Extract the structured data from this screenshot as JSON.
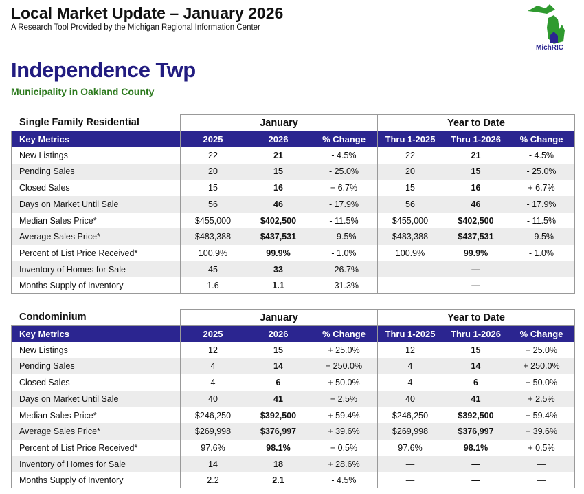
{
  "header": {
    "title": "Local Market Update – January 2026",
    "subtitle": "A Research Tool Provided by the Michigan Regional Information Center"
  },
  "logo": {
    "label": "MichRIC"
  },
  "place": {
    "name": "Independence Twp",
    "subtitle": "Municipality in Oakland County"
  },
  "tables": [
    {
      "section": "Single Family Residential",
      "groups": [
        "January",
        "Year to Date"
      ],
      "columns": [
        "Key Metrics",
        "2025",
        "2026",
        "% Change",
        "Thru 1-2025",
        "Thru 1-2026",
        "% Change"
      ],
      "rows": [
        [
          "New Listings",
          "22",
          "21",
          "- 4.5%",
          "22",
          "21",
          "- 4.5%"
        ],
        [
          "Pending Sales",
          "20",
          "15",
          "- 25.0%",
          "20",
          "15",
          "- 25.0%"
        ],
        [
          "Closed Sales",
          "15",
          "16",
          "+ 6.7%",
          "15",
          "16",
          "+ 6.7%"
        ],
        [
          "Days on Market Until Sale",
          "56",
          "46",
          "- 17.9%",
          "56",
          "46",
          "- 17.9%"
        ],
        [
          "Median Sales Price*",
          "$455,000",
          "$402,500",
          "- 11.5%",
          "$455,000",
          "$402,500",
          "- 11.5%"
        ],
        [
          "Average Sales Price*",
          "$483,388",
          "$437,531",
          "- 9.5%",
          "$483,388",
          "$437,531",
          "- 9.5%"
        ],
        [
          "Percent of List Price Received*",
          "100.9%",
          "99.9%",
          "- 1.0%",
          "100.9%",
          "99.9%",
          "- 1.0%"
        ],
        [
          "Inventory of Homes for Sale",
          "45",
          "33",
          "- 26.7%",
          "—",
          "—",
          "—"
        ],
        [
          "Months Supply of Inventory",
          "1.6",
          "1.1",
          "- 31.3%",
          "—",
          "—",
          "—"
        ]
      ]
    },
    {
      "section": "Condominium",
      "groups": [
        "January",
        "Year to Date"
      ],
      "columns": [
        "Key Metrics",
        "2025",
        "2026",
        "% Change",
        "Thru 1-2025",
        "Thru 1-2026",
        "% Change"
      ],
      "rows": [
        [
          "New Listings",
          "12",
          "15",
          "+ 25.0%",
          "12",
          "15",
          "+ 25.0%"
        ],
        [
          "Pending Sales",
          "4",
          "14",
          "+ 250.0%",
          "4",
          "14",
          "+ 250.0%"
        ],
        [
          "Closed Sales",
          "4",
          "6",
          "+ 50.0%",
          "4",
          "6",
          "+ 50.0%"
        ],
        [
          "Days on Market Until Sale",
          "40",
          "41",
          "+ 2.5%",
          "40",
          "41",
          "+ 2.5%"
        ],
        [
          "Median Sales Price*",
          "$246,250",
          "$392,500",
          "+ 59.4%",
          "$246,250",
          "$392,500",
          "+ 59.4%"
        ],
        [
          "Average Sales Price*",
          "$269,998",
          "$376,997",
          "+ 39.6%",
          "$269,998",
          "$376,997",
          "+ 39.6%"
        ],
        [
          "Percent of List Price Received*",
          "97.6%",
          "98.1%",
          "+ 0.5%",
          "97.6%",
          "98.1%",
          "+ 0.5%"
        ],
        [
          "Inventory of Homes for Sale",
          "14",
          "18",
          "+ 28.6%",
          "—",
          "—",
          "—"
        ],
        [
          "Months Supply of Inventory",
          "2.2",
          "2.1",
          "- 4.5%",
          "—",
          "—",
          "—"
        ]
      ]
    }
  ]
}
